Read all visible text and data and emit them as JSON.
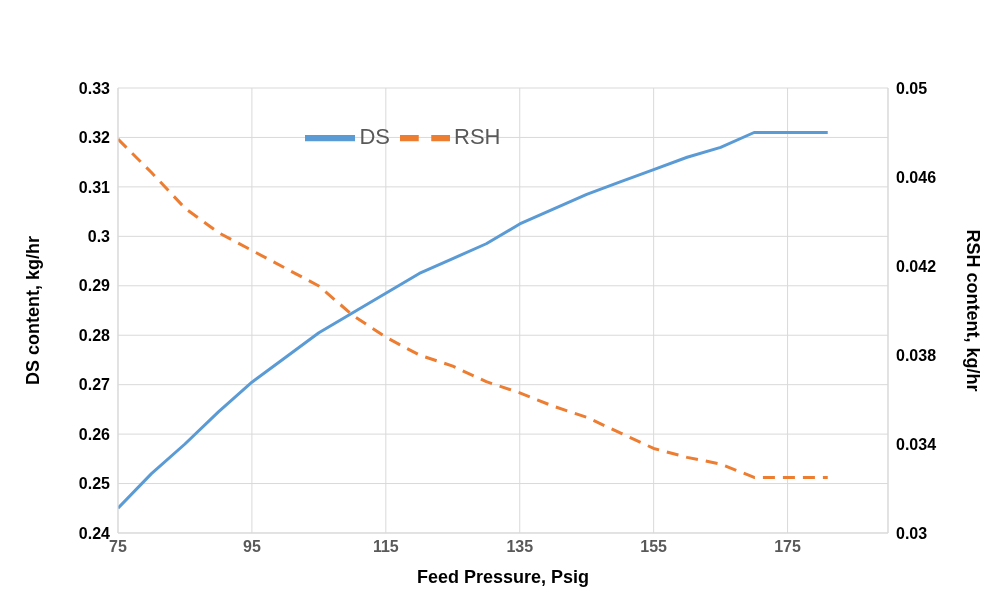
{
  "chart_data": {
    "type": "line",
    "xlabel": "Feed Pressure, Psig",
    "ylabel": "DS content, kg/hr",
    "y2label": "RSH content, kg/hr",
    "x": [
      75,
      80,
      85,
      90,
      95,
      100,
      105,
      110,
      115,
      120,
      125,
      130,
      135,
      140,
      145,
      150,
      155,
      160,
      165,
      170,
      181
    ],
    "series": [
      {
        "name": "DS",
        "color": "#5b9bd5",
        "line_style": "solid",
        "values": [
          0.245,
          0.252,
          0.258,
          0.2645,
          0.2705,
          0.2755,
          0.2805,
          0.2845,
          0.2885,
          0.2925,
          0.2955,
          0.2985,
          0.3025,
          0.3055,
          0.3085,
          0.311,
          0.3135,
          0.316,
          0.318,
          0.321,
          0.321
        ]
      },
      {
        "name": "RSH",
        "color": "#ed7d31",
        "line_style": "dashed",
        "axis": "y2",
        "values": [
          0.0477,
          0.0462,
          0.0446,
          0.0435,
          0.0427,
          0.0419,
          0.0411,
          0.0398,
          0.0388,
          0.038,
          0.0375,
          0.0368,
          0.0363,
          0.0357,
          0.0352,
          0.0345,
          0.0338,
          0.0334,
          0.0331,
          0.0325,
          0.0325
        ]
      }
    ],
    "xlim": [
      75,
      190
    ],
    "xticks": [
      75,
      95,
      115,
      135,
      155,
      175
    ],
    "ylim": [
      0.24,
      0.33
    ],
    "yticks": [
      0.24,
      0.25,
      0.26,
      0.27,
      0.28,
      0.29,
      0.3,
      0.31,
      0.32,
      0.33
    ],
    "y2lim": [
      0.03,
      0.05
    ],
    "y2ticks": [
      0.03,
      0.034,
      0.038,
      0.042,
      0.046,
      0.05
    ],
    "grid": true,
    "legend": "top",
    "marker": "none"
  }
}
